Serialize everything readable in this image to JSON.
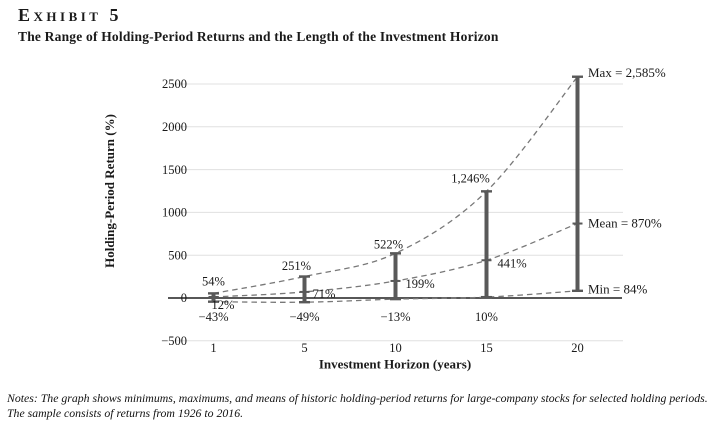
{
  "header": {
    "exhibit": "Exhibit 5",
    "title": "The Range of Holding-Period Returns and the Length of the Investment Horizon"
  },
  "notes": {
    "line1": "Notes: The graph shows minimums, maximums, and means of historic holding-period returns for large-company stocks for selected holding periods.",
    "line2": "The sample consists of returns from 1926 to 2016."
  },
  "chart_data": {
    "type": "line",
    "subtype": "min-max-mean range bars with dashed trend curves",
    "title": "The Range of Holding-Period Returns and the Length of the Investment Horizon",
    "xlabel": "Investment Horizon (years)",
    "ylabel": "Holding-Period Return (%)",
    "categories": [
      "1",
      "5",
      "10",
      "15",
      "20"
    ],
    "series": [
      {
        "name": "Max",
        "values": [
          54,
          251,
          522,
          1246,
          2585
        ],
        "point_labels": [
          "54%",
          "251%",
          "522%",
          "1,246%",
          null
        ]
      },
      {
        "name": "Mean",
        "values": [
          12,
          71,
          199,
          441,
          870
        ],
        "point_labels": [
          "12%",
          "71%",
          "199%",
          "441%",
          null
        ]
      },
      {
        "name": "Min",
        "values": [
          -43,
          -49,
          -13,
          10,
          84
        ],
        "point_labels": [
          "−43%",
          "−49%",
          "−13%",
          "10%",
          null
        ]
      }
    ],
    "annotations": [
      {
        "series": "Max",
        "text": "Max = 2,585%"
      },
      {
        "series": "Mean",
        "text": "Mean = 870%"
      },
      {
        "series": "Min",
        "text": "Min = 84%"
      }
    ],
    "ylim": [
      -500,
      2500
    ],
    "y_ticks": [
      -500,
      0,
      500,
      1000,
      1500,
      2000,
      2500
    ],
    "y_tick_labels": [
      "−500",
      "0",
      "500",
      "1000",
      "1500",
      "2000",
      "2500"
    ],
    "grid": "horizontal",
    "line_style": "dashed",
    "legend": "none",
    "colors": {
      "bar": "#595959",
      "curve": "#787878",
      "grid": "#e0e0e0",
      "zero_line": "#3f3f3f",
      "text": "#1a1a1a"
    }
  }
}
